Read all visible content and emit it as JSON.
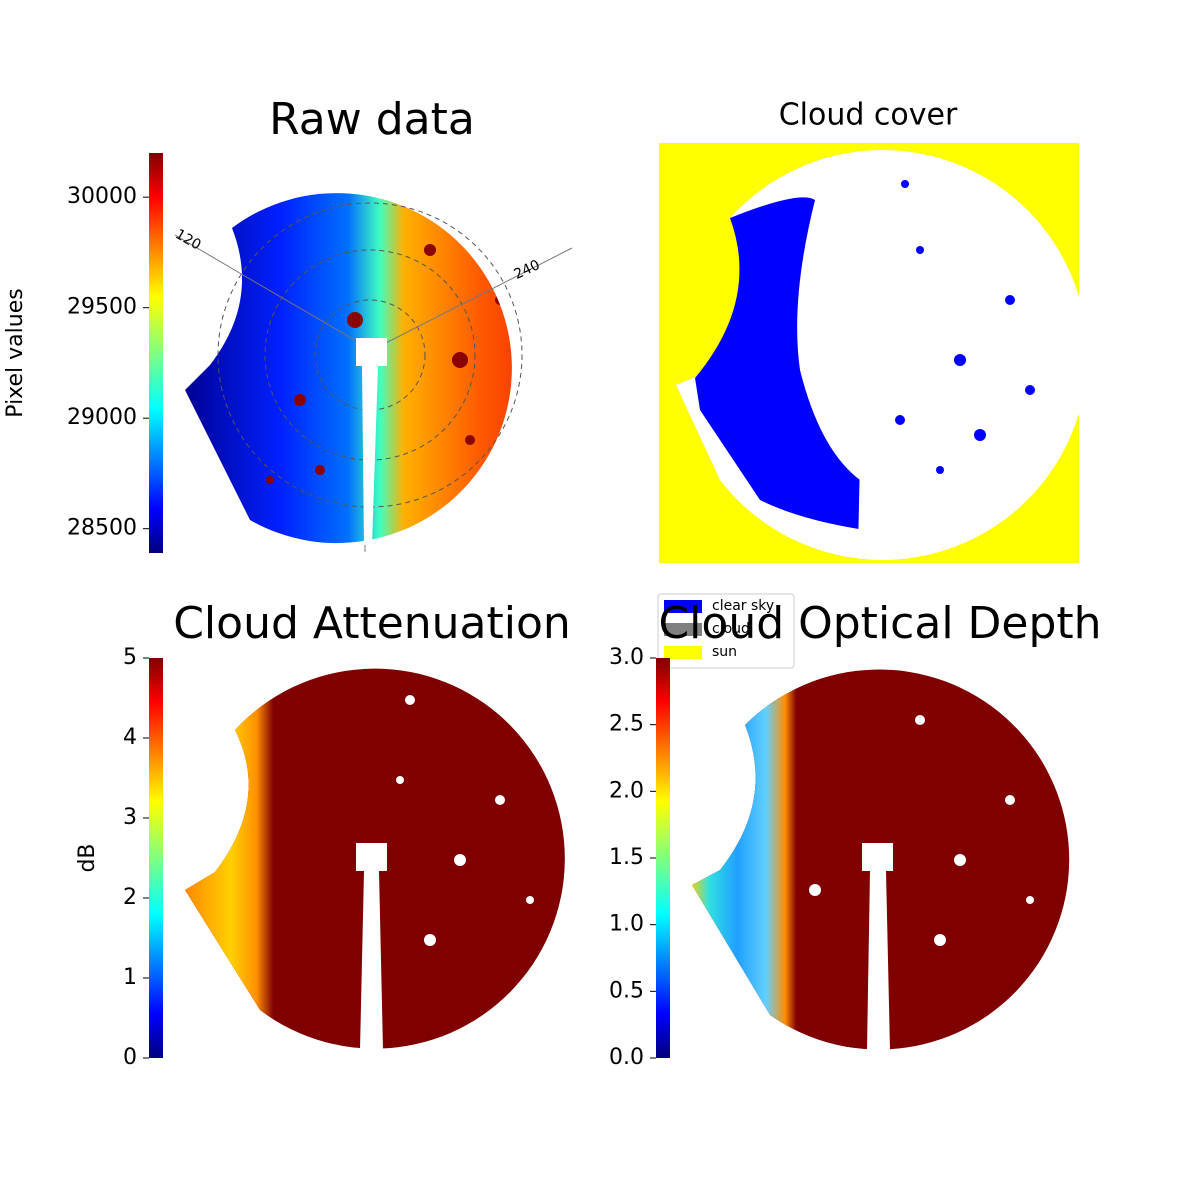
{
  "chart_data": [
    {
      "type": "image",
      "title": "Raw data",
      "polar_labels": [
        "120",
        "240"
      ],
      "colorbar": {
        "label": "Pixel values",
        "colormap": "jet",
        "ylim": [
          28390,
          30200
        ],
        "yticks": [
          28500,
          29000,
          29500,
          30000
        ]
      }
    },
    {
      "type": "image",
      "title": "Cloud cover",
      "series": [
        {
          "name": "clear sky",
          "color": "#0000ff"
        },
        {
          "name": "cloud",
          "color": "#808080"
        },
        {
          "name": "sun",
          "color": "#ffff00"
        }
      ]
    },
    {
      "type": "image",
      "title": "Cloud Attenuation",
      "colorbar": {
        "label": "dB",
        "colormap": "jet",
        "ylim": [
          0,
          5
        ],
        "yticks": [
          0,
          1,
          2,
          3,
          4,
          5
        ]
      }
    },
    {
      "type": "image",
      "title": "Cloud Optical Depth",
      "colorbar": {
        "colormap": "jet",
        "ylim": [
          0,
          3
        ],
        "yticks": [
          {
            "value": 0,
            "label": "0.0"
          },
          {
            "value": 0.5,
            "label": "0.5"
          },
          {
            "value": 1,
            "label": "1.0"
          },
          {
            "value": 1.5,
            "label": "1.5"
          },
          {
            "value": 2,
            "label": "2.0"
          },
          {
            "value": 2.5,
            "label": "2.5"
          },
          {
            "value": 3,
            "label": "3.0"
          }
        ]
      }
    }
  ]
}
